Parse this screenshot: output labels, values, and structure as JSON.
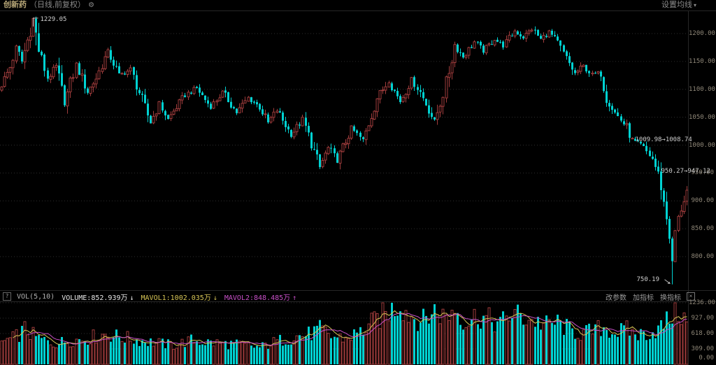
{
  "header": {
    "symbol": "创新药",
    "period_info": "（日线,前复权）",
    "gear_icon": "⚙",
    "settings_label": "设置均线",
    "settings_caret": "▾"
  },
  "volume_legend": {
    "help_icon": "?",
    "indicator": "VOL(5,10)",
    "volume": {
      "label": "VOLUME:852.939万",
      "arrow": "↓"
    },
    "mavol1": {
      "label": "MAVOL1:1002.035万",
      "arrow": "↓"
    },
    "mavol2": {
      "label": "MAVOL2:848.485万",
      "arrow": "↑"
    }
  },
  "toolbar": {
    "change_params": "改参数",
    "add_indicator": "加指标",
    "switch_indicator": "换指标",
    "close_icon": "×"
  },
  "colors": {
    "background": "#000000",
    "up": "#a03c3c",
    "down": "#00d2d2",
    "grid": "#2e2e2e",
    "separator": "#262626",
    "axis_text": "#8f8778",
    "annotation": "#cfcfcf",
    "header_name": "#b9a878",
    "header_sub": "#8b8b8b",
    "legend_volume": "#e6e6e6",
    "mavol1_line": "#d6c455",
    "mavol2_line": "#c850c8",
    "link": "#9a9a9a"
  },
  "chart_data": {
    "type": "candlestick",
    "title": "创新药 日线 前复权",
    "legend_position": "none",
    "grid": "dotted-horizontal",
    "candle_count": 240,
    "price_axis": {
      "range_top": 1240,
      "range_bottom": 740,
      "ticks": [
        {
          "v": 1200,
          "label": "1200.00"
        },
        {
          "v": 1150,
          "label": "1150.00"
        },
        {
          "v": 1100,
          "label": "1100.00"
        },
        {
          "v": 1050,
          "label": "1050.00"
        },
        {
          "v": 1000,
          "label": "1000.00"
        },
        {
          "v": 950,
          "label": "950.00"
        },
        {
          "v": 900,
          "label": "900.00"
        },
        {
          "v": 850,
          "label": "850.00"
        },
        {
          "v": 800,
          "label": "800.00"
        }
      ]
    },
    "volume_axis": {
      "unit": "万",
      "ticks": [
        {
          "v": 1236,
          "label": "1236.00"
        },
        {
          "v": 927,
          "label": "927.00"
        },
        {
          "v": 618,
          "label": "618.00"
        },
        {
          "v": 309,
          "label": "309.00"
        },
        {
          "v": 0,
          "label": "0.00"
        }
      ]
    },
    "price_waypoints": [
      [
        0,
        1108
      ],
      [
        3,
        1140
      ],
      [
        5,
        1175
      ],
      [
        7,
        1150
      ],
      [
        11,
        1226
      ],
      [
        13,
        1170
      ],
      [
        16,
        1120
      ],
      [
        19,
        1140
      ],
      [
        22,
        1075
      ],
      [
        26,
        1145
      ],
      [
        30,
        1095
      ],
      [
        33,
        1120
      ],
      [
        37,
        1168
      ],
      [
        41,
        1125
      ],
      [
        45,
        1135
      ],
      [
        52,
        1040
      ],
      [
        55,
        1075
      ],
      [
        58,
        1046
      ],
      [
        64,
        1090
      ],
      [
        68,
        1102
      ],
      [
        73,
        1068
      ],
      [
        77,
        1095
      ],
      [
        82,
        1058
      ],
      [
        86,
        1085
      ],
      [
        90,
        1068
      ],
      [
        93,
        1040
      ],
      [
        96,
        1062
      ],
      [
        101,
        1018
      ],
      [
        105,
        1046
      ],
      [
        111,
        960
      ],
      [
        114,
        995
      ],
      [
        117,
        972
      ],
      [
        122,
        1030
      ],
      [
        126,
        1008
      ],
      [
        131,
        1085
      ],
      [
        135,
        1115
      ],
      [
        139,
        1078
      ],
      [
        143,
        1118
      ],
      [
        146,
        1095
      ],
      [
        151,
        1042
      ],
      [
        155,
        1110
      ],
      [
        158,
        1180
      ],
      [
        161,
        1158
      ],
      [
        165,
        1185
      ],
      [
        168,
        1168
      ],
      [
        172,
        1190
      ],
      [
        175,
        1178
      ],
      [
        179,
        1205
      ],
      [
        182,
        1193
      ],
      [
        185,
        1208
      ],
      [
        188,
        1190
      ],
      [
        191,
        1203
      ],
      [
        194,
        1183
      ],
      [
        197,
        1155
      ],
      [
        200,
        1128
      ],
      [
        203,
        1142
      ],
      [
        206,
        1126
      ],
      [
        209,
        1130
      ],
      [
        211,
        1085
      ],
      [
        214,
        1058
      ],
      [
        218,
        1032
      ],
      [
        220,
        1008
      ],
      [
        223,
        1000
      ],
      [
        225,
        988
      ],
      [
        227,
        975
      ],
      [
        229,
        947
      ],
      [
        230,
        928
      ],
      [
        231,
        895
      ],
      [
        233,
        845
      ],
      [
        234,
        790
      ],
      [
        235,
        845
      ],
      [
        236,
        865
      ],
      [
        237,
        888
      ],
      [
        239,
        918
      ]
    ],
    "volume_waypoints": [
      [
        0,
        450
      ],
      [
        4,
        520
      ],
      [
        8,
        700
      ],
      [
        12,
        540
      ],
      [
        18,
        420
      ],
      [
        24,
        480
      ],
      [
        30,
        520
      ],
      [
        36,
        610
      ],
      [
        44,
        520
      ],
      [
        52,
        450
      ],
      [
        60,
        380
      ],
      [
        66,
        480
      ],
      [
        74,
        430
      ],
      [
        82,
        400
      ],
      [
        90,
        340
      ],
      [
        97,
        480
      ],
      [
        103,
        560
      ],
      [
        108,
        620
      ],
      [
        111,
        700
      ],
      [
        115,
        560
      ],
      [
        120,
        520
      ],
      [
        125,
        650
      ],
      [
        131,
        900
      ],
      [
        135,
        1060
      ],
      [
        139,
        1230
      ],
      [
        142,
        1000
      ],
      [
        147,
        880
      ],
      [
        151,
        1090
      ],
      [
        155,
        940
      ],
      [
        158,
        1140
      ],
      [
        162,
        840
      ],
      [
        166,
        990
      ],
      [
        170,
        890
      ],
      [
        174,
        810
      ],
      [
        178,
        1040
      ],
      [
        182,
        940
      ],
      [
        186,
        870
      ],
      [
        190,
        790
      ],
      [
        194,
        840
      ],
      [
        198,
        690
      ],
      [
        202,
        610
      ],
      [
        206,
        670
      ],
      [
        210,
        740
      ],
      [
        214,
        640
      ],
      [
        218,
        690
      ],
      [
        222,
        590
      ],
      [
        226,
        640
      ],
      [
        229,
        700
      ],
      [
        231,
        800
      ],
      [
        233,
        920
      ],
      [
        235,
        1100
      ],
      [
        237,
        1000
      ],
      [
        239,
        853
      ]
    ],
    "extremes": {
      "high_index": 11,
      "high": 1229.05,
      "low_index": 234,
      "low": 750.19
    },
    "annotations": [
      {
        "id": "high-label",
        "text": "1229.05",
        "index": 11,
        "price": 1229.05,
        "placement": "right-of-high"
      },
      {
        "id": "gap1-label",
        "text": "1009.98→1008.74",
        "index": 220,
        "price": 1009.5,
        "placement": "right"
      },
      {
        "id": "gap2-label",
        "text": "950.27→947.12",
        "index": 229,
        "price": 953,
        "placement": "right"
      },
      {
        "id": "low-label",
        "text": "750.19",
        "index": 234,
        "price": 750.19,
        "placement": "left-of-low"
      }
    ],
    "indicators": {
      "vol_ma_periods": [
        5,
        10
      ]
    },
    "current": {
      "volume": 852.939,
      "mavol1": 1002.035,
      "mavol2": 848.485
    }
  }
}
